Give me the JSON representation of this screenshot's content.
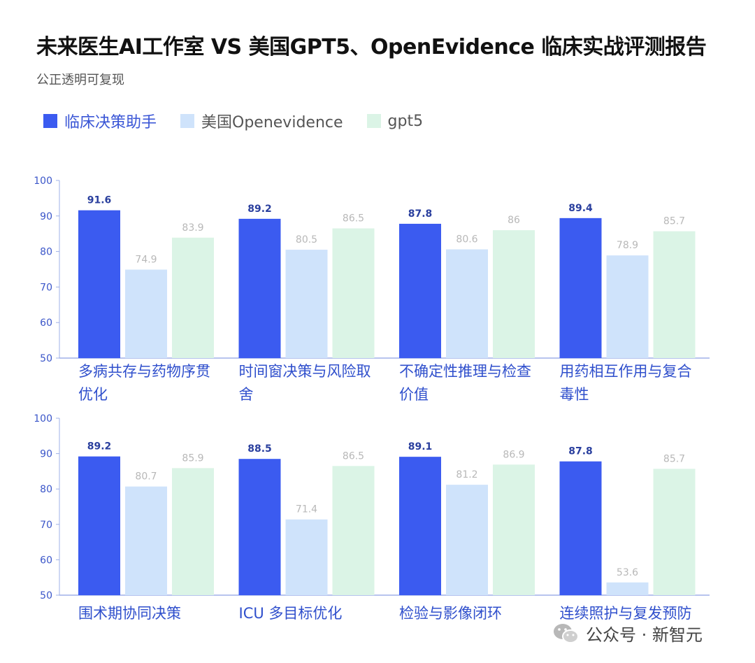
{
  "header": {
    "title": "未来医生AI工作室 VS 美国GPT5、OpenEvidence 临床实战评测报告",
    "subtitle": "公正透明可复现"
  },
  "legend": [
    {
      "label": "临床决策助手",
      "color": "#3b5bf0"
    },
    {
      "label": "美国Openevidence",
      "color": "#cfe3fb"
    },
    {
      "label": "gpt5",
      "color": "#dbf4e6"
    }
  ],
  "watermark": {
    "text": "公众号 · 新智元",
    "icon": "wechat-icon"
  },
  "colors": {
    "axis": "#9fb0e8",
    "tick_label": "#3b56c9",
    "category_label": "#2f4fcc",
    "value_label_primary": "#2a3f9e",
    "value_label_secondary": "#b8b8b8"
  },
  "chart_data": [
    {
      "type": "bar",
      "ylim": [
        50,
        100
      ],
      "yticks": [
        50,
        60,
        70,
        80,
        90,
        100
      ],
      "grid": false,
      "categories": [
        [
          "多病共存与药物序贯",
          "优化"
        ],
        [
          "时间窗决策与风险取",
          "舍"
        ],
        [
          "不确定性推理与检查",
          "价值"
        ],
        [
          "用药相互作用与复合",
          "毒性"
        ]
      ],
      "series": [
        {
          "name": "临床决策助手",
          "values": [
            91.6,
            89.2,
            87.8,
            89.4
          ],
          "labels": [
            "91.6",
            "89.2",
            "87.8",
            "89.4"
          ]
        },
        {
          "name": "美国Openevidence",
          "values": [
            74.9,
            80.5,
            80.6,
            78.9
          ],
          "labels": [
            "74.9",
            "80.5",
            "80.6",
            "78.9"
          ]
        },
        {
          "name": "gpt5",
          "values": [
            83.9,
            86.5,
            86,
            85.7
          ],
          "labels": [
            "83.9",
            "86.5",
            "86",
            "85.7"
          ]
        }
      ]
    },
    {
      "type": "bar",
      "ylim": [
        50,
        100
      ],
      "yticks": [
        50,
        60,
        70,
        80,
        90,
        100
      ],
      "grid": false,
      "categories": [
        [
          "围术期协同决策"
        ],
        [
          "ICU 多目标优化"
        ],
        [
          "检验与影像闭环"
        ],
        [
          "连续照护与复发预防"
        ]
      ],
      "series": [
        {
          "name": "临床决策助手",
          "values": [
            89.2,
            88.5,
            89.1,
            87.8
          ],
          "labels": [
            "89.2",
            "88.5",
            "89.1",
            "87.8"
          ]
        },
        {
          "name": "美国Openevidence",
          "values": [
            80.7,
            71.4,
            81.2,
            53.6
          ],
          "labels": [
            "80.7",
            "71.4",
            "81.2",
            "53.6"
          ]
        },
        {
          "name": "gpt5",
          "values": [
            85.9,
            86.5,
            86.9,
            85.7
          ],
          "labels": [
            "85.9",
            "86.5",
            "86.9",
            "85.7"
          ]
        }
      ]
    }
  ]
}
